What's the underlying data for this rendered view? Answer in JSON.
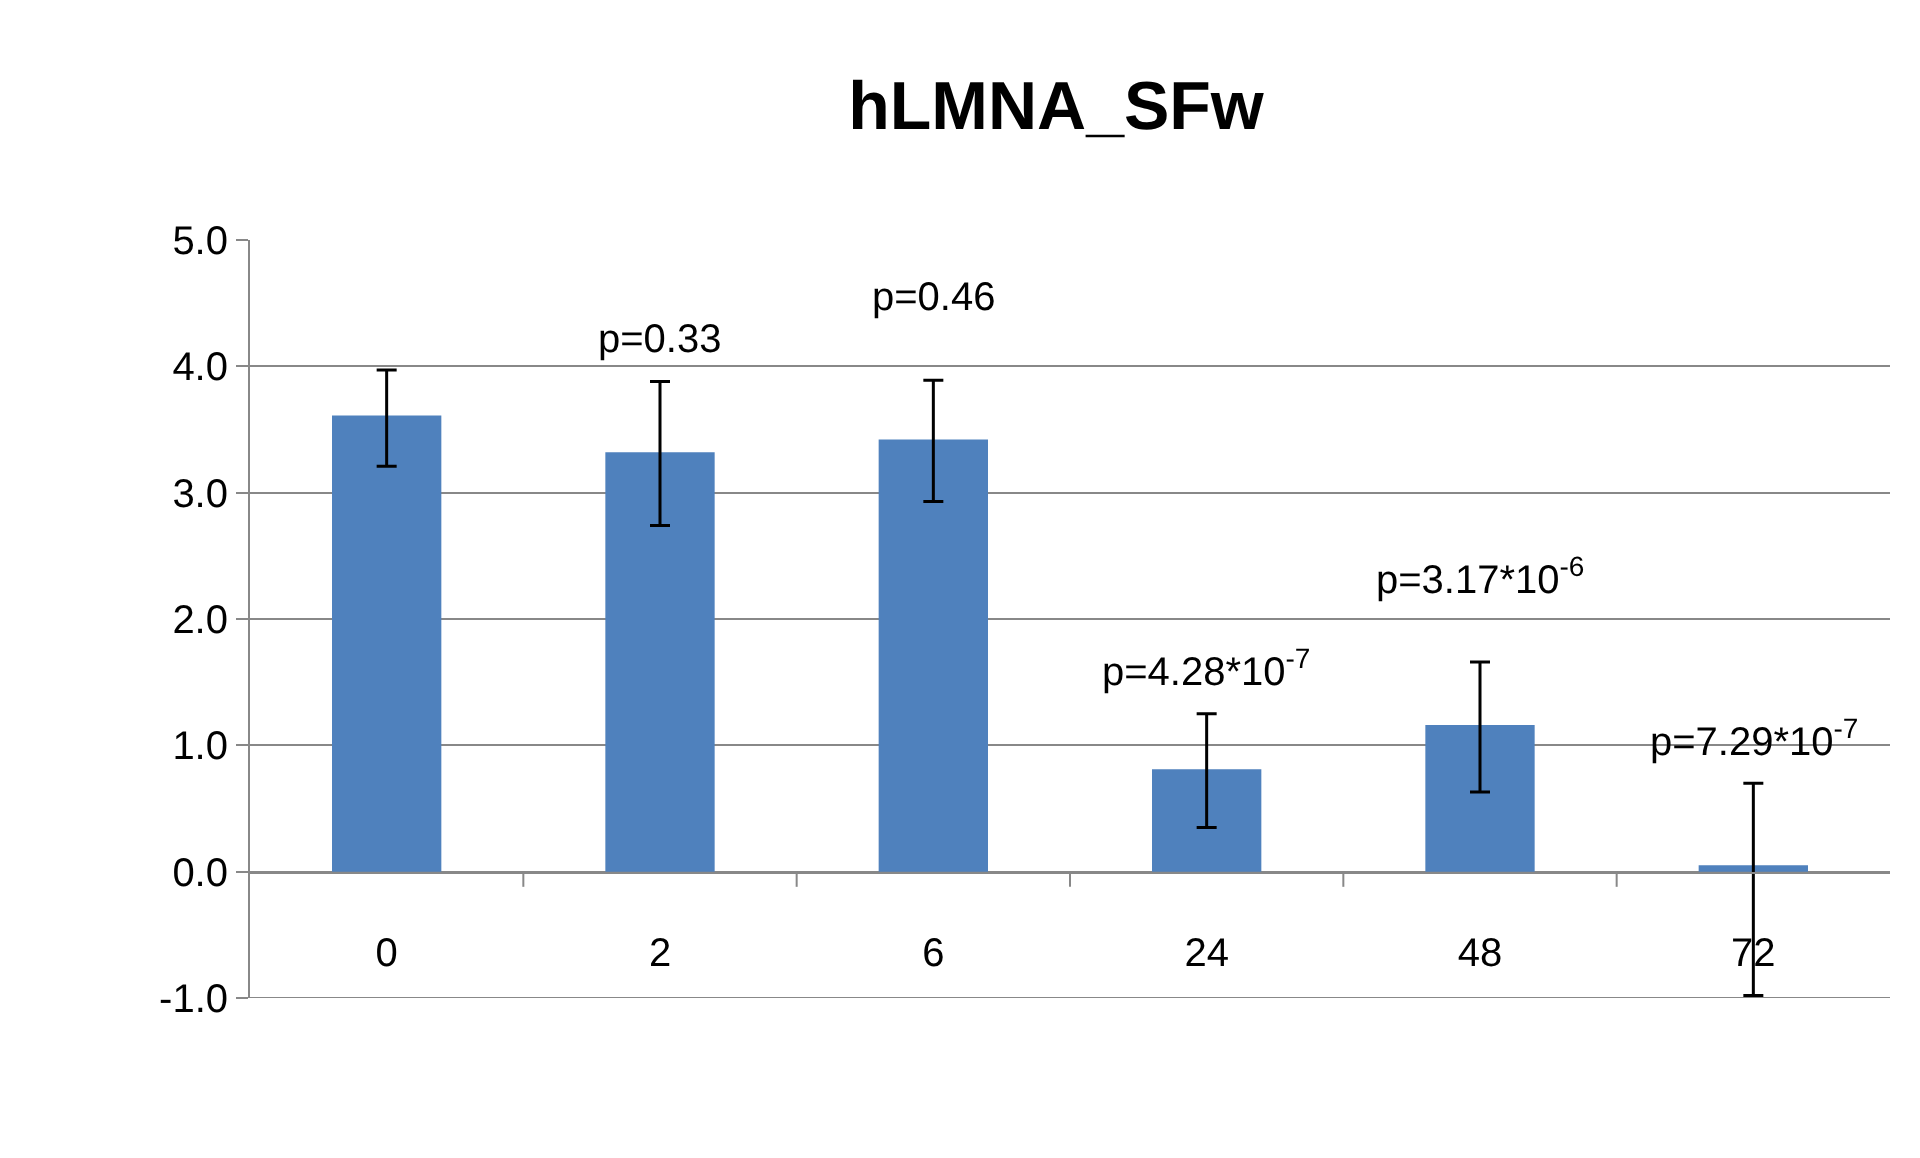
{
  "chart_data": {
    "type": "bar",
    "title": "hLMNA_SFw",
    "categories": [
      "0",
      "2",
      "6",
      "24",
      "48",
      "72"
    ],
    "values": [
      3.61,
      3.32,
      3.42,
      0.81,
      1.16,
      0.05
    ],
    "color": "#4f81bd",
    "errors": [
      [
        3.21,
        3.97
      ],
      [
        2.74,
        3.88
      ],
      [
        2.93,
        3.89
      ],
      [
        0.35,
        1.25
      ],
      [
        0.63,
        1.66
      ],
      [
        -0.98,
        0.7
      ]
    ],
    "ylim": [
      -1,
      5
    ],
    "yticks": [
      {
        "value": -1,
        "label": "-1.0"
      },
      {
        "value": 0,
        "label": "0.0"
      },
      {
        "value": 1,
        "label": "1.0"
      },
      {
        "value": 2,
        "label": "2.0"
      },
      {
        "value": 3,
        "label": "3.0"
      },
      {
        "value": 4,
        "label": "4.0"
      },
      {
        "value": 5,
        "label": "5.0"
      }
    ],
    "grid": "y",
    "legend": false,
    "annotations": [
      "p=0.33",
      "p=0.46",
      "p=4.28*10$^{-7}$",
      "p=3.17*10$^{-6}$",
      "p=7.29*10$^{-7}$"
    ]
  }
}
